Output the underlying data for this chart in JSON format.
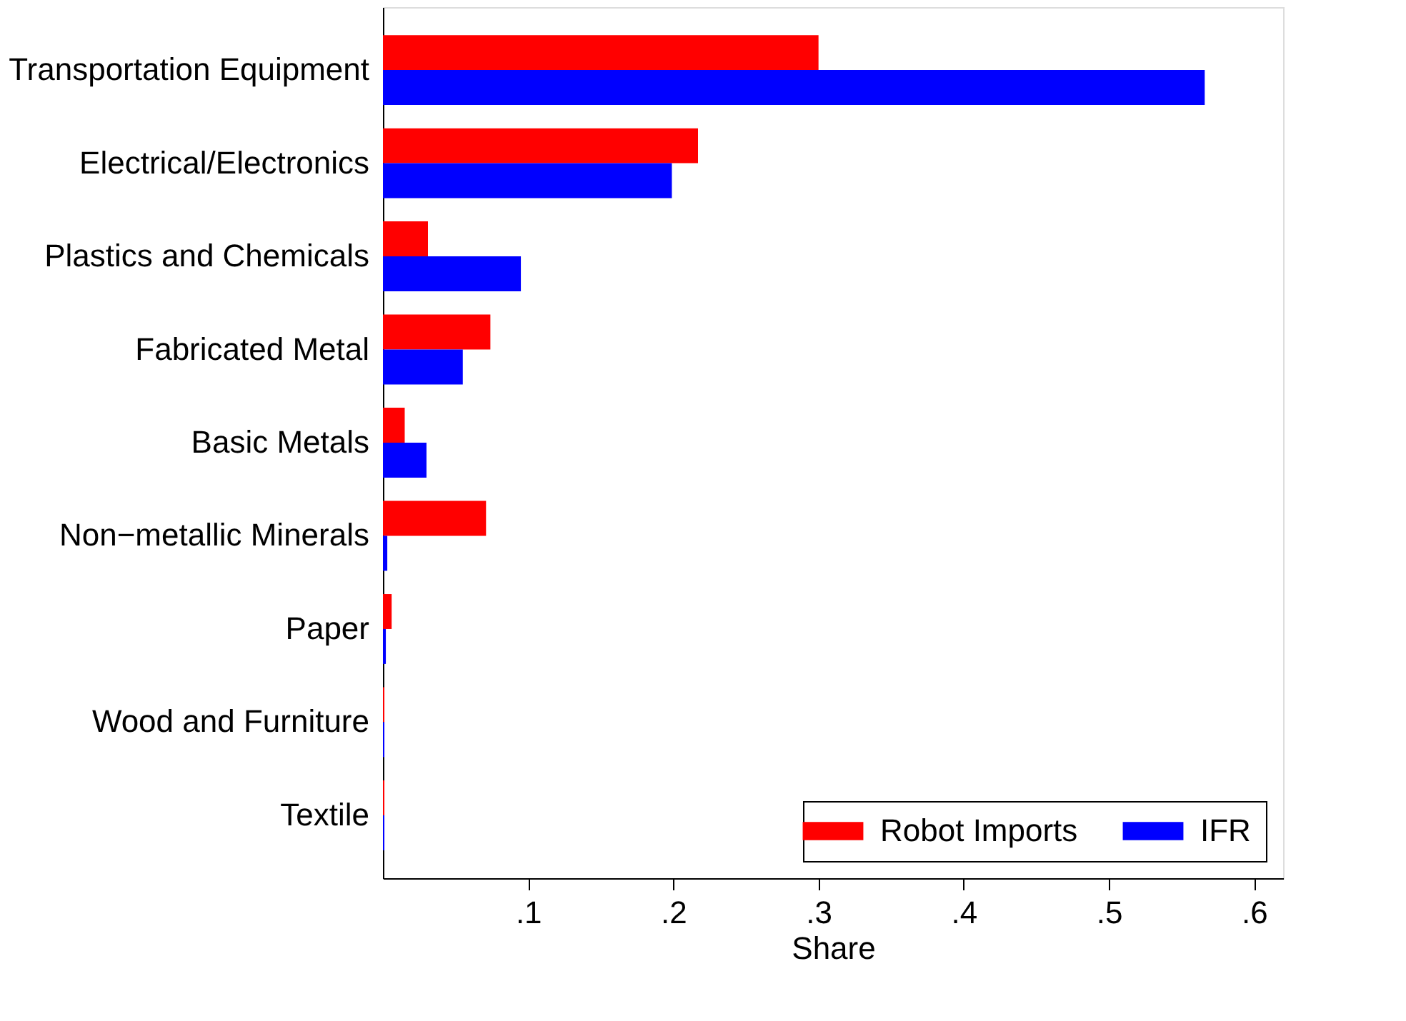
{
  "chart_data": {
    "type": "bar",
    "orientation": "horizontal",
    "xlabel": "Share",
    "categories": [
      "Transportation Equipment",
      "Electrical/Electronics",
      "Plastics and Chemicals",
      "Fabricated Metal",
      "Basic Metals",
      "Non−metallic Minerals",
      "Paper",
      "Wood and Furniture",
      "Textile"
    ],
    "series": [
      {
        "name": "Robot Imports",
        "color": "#ff0000",
        "values": [
          0.3,
          0.217,
          0.031,
          0.074,
          0.015,
          0.071,
          0.006,
          0.001,
          0.001
        ]
      },
      {
        "name": "IFR",
        "color": "#0000ff",
        "values": [
          0.566,
          0.199,
          0.095,
          0.055,
          0.03,
          0.003,
          0.002,
          0.001,
          0.001
        ]
      }
    ],
    "xlim": [
      0,
      0.62
    ],
    "xticks": [
      {
        "value": 0.1,
        "label": ".1"
      },
      {
        "value": 0.2,
        "label": ".2"
      },
      {
        "value": 0.3,
        "label": ".3"
      },
      {
        "value": 0.4,
        "label": ".4"
      },
      {
        "value": 0.5,
        "label": ".5"
      },
      {
        "value": 0.6,
        "label": ".6"
      }
    ],
    "grid": false,
    "legend": "bottom right"
  }
}
